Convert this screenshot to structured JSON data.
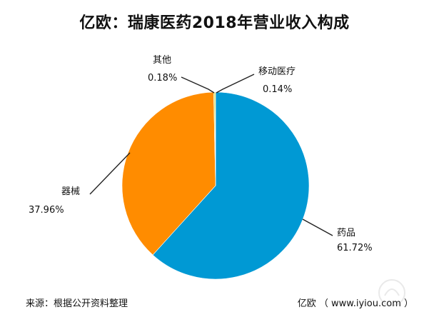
{
  "chart_data": {
    "type": "pie",
    "title": "亿欧：瑞康医药2018年营业收入构成",
    "slices": [
      {
        "name": "药品",
        "value": 61.72,
        "label": "61.72%",
        "color": "#0099d4"
      },
      {
        "name": "器械",
        "value": 37.96,
        "label": "37.96%",
        "color": "#ff8c00"
      },
      {
        "name": "其他",
        "value": 0.18,
        "label": "0.18%",
        "color": "#b4d336"
      },
      {
        "name": "移动医疗",
        "value": 0.14,
        "label": "0.14%",
        "color": "#f2d71e"
      }
    ],
    "start": "12 o'clock",
    "direction": "clockwise"
  },
  "footer": {
    "source": "来源：根据公开资料整理",
    "credit": "亿欧 （ www.iyiou.com ）"
  }
}
